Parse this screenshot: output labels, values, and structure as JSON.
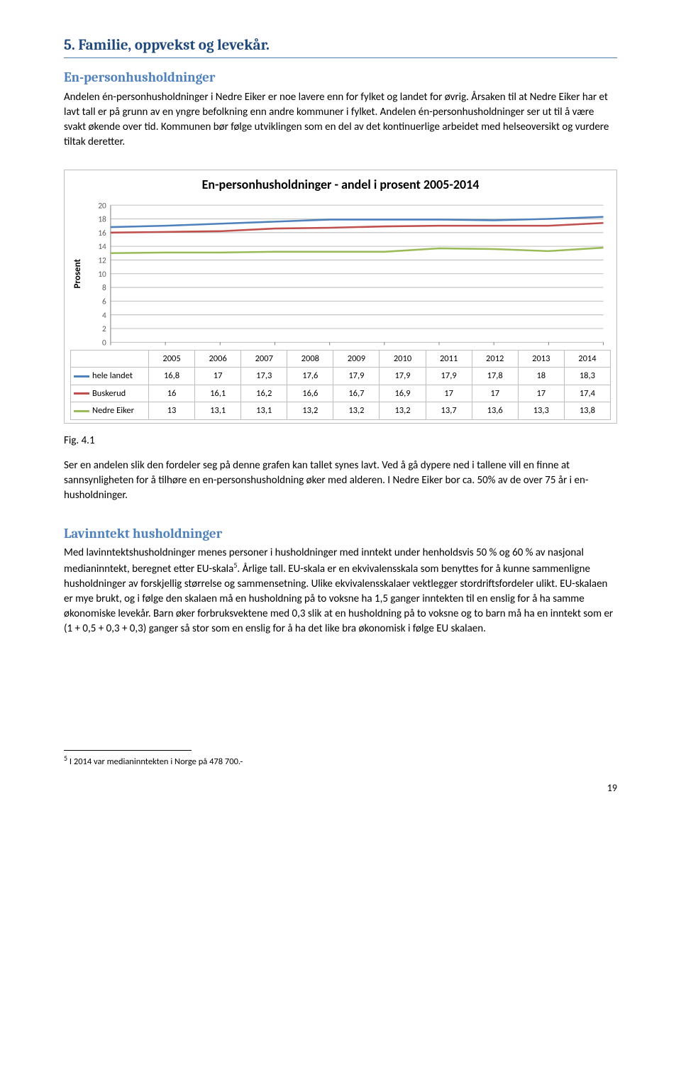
{
  "section_title": "5.  Familie, oppvekst og levekår.",
  "sub1_title": "En-personhusholdninger",
  "sub1_body": "Andelen én-personhusholdninger i Nedre Eiker er noe lavere enn for fylket og landet for øvrig. Årsaken til at Nedre Eiker har et lavt tall er på grunn av en yngre befolkning enn andre kommuner i fylket. Andelen én-personhusholdninger ser ut til å være svakt økende over tid. Kommunen bør følge utviklingen som en del av det kontinuerlige arbeidet med helseoversikt og vurdere tiltak deretter.",
  "chart": {
    "type": "line",
    "title": "En-personhusholdninger - andel i prosent 2005-2014",
    "ylabel": "Prosent",
    "ylim": [
      0,
      20
    ],
    "ytick_step": 2,
    "yticks": [
      "0",
      "2",
      "4",
      "6",
      "8",
      "10",
      "12",
      "14",
      "16",
      "18",
      "20"
    ],
    "categories": [
      "2005",
      "2006",
      "2007",
      "2008",
      "2009",
      "2010",
      "2011",
      "2012",
      "2013",
      "2014"
    ],
    "grid_color": "#bfbfbf",
    "background_color": "#ffffff",
    "axis_color": "#808080",
    "series": [
      {
        "name": "hele landet",
        "color": "#4f81bd",
        "values": [
          16.8,
          17,
          17.3,
          17.6,
          17.9,
          17.9,
          17.9,
          17.8,
          18,
          18.3
        ],
        "display": [
          "16,8",
          "17",
          "17,3",
          "17,6",
          "17,9",
          "17,9",
          "17,9",
          "17,8",
          "18",
          "18,3"
        ]
      },
      {
        "name": "Buskerud",
        "color": "#c0504d",
        "values": [
          16,
          16.1,
          16.2,
          16.6,
          16.7,
          16.9,
          17,
          17,
          17,
          17.4
        ],
        "display": [
          "16",
          "16,1",
          "16,2",
          "16,6",
          "16,7",
          "16,9",
          "17",
          "17",
          "17",
          "17,4"
        ]
      },
      {
        "name": "Nedre Eiker",
        "color": "#9bbb59",
        "values": [
          13,
          13.1,
          13.1,
          13.2,
          13.2,
          13.2,
          13.7,
          13.6,
          13.3,
          13.8
        ],
        "display": [
          "13",
          "13,1",
          "13,1",
          "13,2",
          "13,2",
          "13,2",
          "13,7",
          "13,6",
          "13,3",
          "13,8"
        ]
      }
    ]
  },
  "fig_label": "Fig. 4.1",
  "fig_body": "Ser en andelen slik den fordeler seg på denne grafen kan tallet synes lavt. Ved å gå dypere ned i tallene vill en finne at sannsynligheten for å tilhøre en en-personshusholdning øker med alderen. I Nedre Eiker bor ca. 50% av de over 75 år i en-husholdninger.",
  "sub2_title": "Lavinntekt husholdninger",
  "sub2_body_a": "Med lavinntektshusholdninger menes personer i husholdninger med inntekt under henholdsvis 50 % og 60 % av nasjonal medianinntekt, beregnet etter EU-skala",
  "sub2_sup": "5",
  "sub2_body_b": ". Årlige tall. EU-skala er en ekvivalensskala som benyttes for å kunne sammenligne husholdninger av forskjellig størrelse og sammensetning. Ulike ekvivalensskalaer vektlegger stordriftsfordeler ulikt. EU-skalaen er mye brukt, og i følge den skalaen må en husholdning på to voksne ha 1,5 ganger inntekten til en enslig for å ha samme økonomiske levekår. Barn øker forbruksvektene med 0,3 slik at en husholdning på to voksne og to barn må ha en inntekt som er (1 + 0,5 + 0,3 + 0,3) ganger så stor som en enslig for å ha det like bra økonomisk i følge EU skalaen.",
  "footnote_sup": "5",
  "footnote_text": " I 2014 var medianinntekten i Norge på 478 700.-",
  "page_number": "19"
}
